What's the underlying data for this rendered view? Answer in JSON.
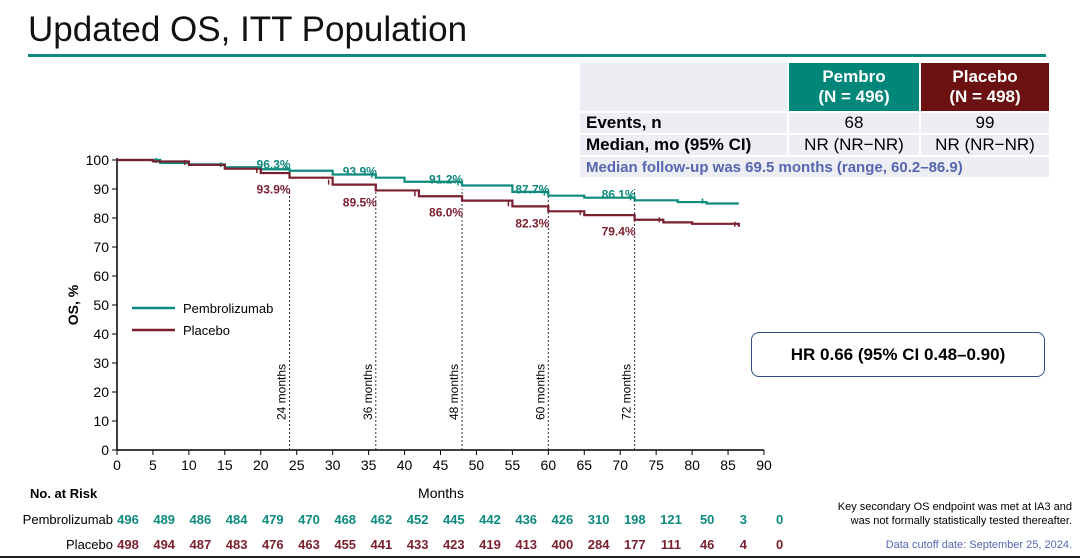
{
  "title": "Updated OS, ITT Population",
  "colors": {
    "pembro": "#0e8a7e",
    "placebo": "#7a1f2e",
    "accent": "#0e8a7e"
  },
  "summary_table": {
    "headers": [
      "",
      "Pembro\n(N = 496)",
      "Placebo\n(N = 498)"
    ],
    "pembro_header": [
      "Pembro",
      "(N = 496)"
    ],
    "placebo_header": [
      "Placebo",
      "(N = 498)"
    ],
    "rows": [
      {
        "label": "Events, n",
        "pembro": "68",
        "placebo": "99"
      },
      {
        "label": "Median, mo (95% CI)",
        "pembro": "NR (NR−NR)",
        "placebo": "NR (NR−NR)"
      }
    ],
    "followup": "Median follow-up was 69.5 months (range, 60.2–86.9)"
  },
  "hr": "HR 0.66 (95% CI 0.48–0.90)",
  "risk_table": {
    "title": "No. at Risk",
    "pembro_label": "Pembrolizumab",
    "placebo_label": "Placebo",
    "pembro": [
      "496",
      "489",
      "486",
      "484",
      "479",
      "470",
      "468",
      "462",
      "452",
      "445",
      "442",
      "436",
      "426",
      "310",
      "198",
      "121",
      "50",
      "3",
      "0"
    ],
    "placebo": [
      "498",
      "494",
      "487",
      "483",
      "476",
      "463",
      "455",
      "441",
      "433",
      "423",
      "419",
      "413",
      "400",
      "284",
      "177",
      "111",
      "46",
      "4",
      "0"
    ]
  },
  "note": [
    "Key secondary OS endpoint was met at IA3 and",
    "was not formally statistically tested thereafter."
  ],
  "cutoff": "Data cutoff date: September 25, 2024.",
  "chart_data": {
    "type": "line",
    "xlabel": "Months",
    "ylabel": "OS, %",
    "xlim": [
      0,
      90
    ],
    "ylim": [
      0,
      100
    ],
    "xticks": [
      0,
      5,
      10,
      15,
      20,
      25,
      30,
      35,
      40,
      45,
      50,
      55,
      60,
      65,
      70,
      75,
      80,
      85,
      90
    ],
    "yticks": [
      0,
      10,
      20,
      30,
      40,
      50,
      60,
      70,
      80,
      90,
      100
    ],
    "legend": "center-left",
    "series": [
      {
        "name": "Pembrolizumab",
        "x": [
          0,
          3,
          6,
          10,
          15,
          20,
          24,
          30,
          36,
          40,
          48,
          55,
          60,
          65,
          72,
          78,
          82,
          86.5
        ],
        "y": [
          100,
          100,
          99,
          98.5,
          97.5,
          96.8,
          96.3,
          95,
          93.9,
          92.5,
          91.2,
          89,
          87.7,
          87,
          86.1,
          85.5,
          85,
          85
        ]
      },
      {
        "name": "Placebo",
        "x": [
          0,
          5,
          10,
          15,
          20,
          24,
          30,
          36,
          42,
          48,
          55,
          60,
          65,
          72,
          76,
          80,
          86.5
        ],
        "y": [
          100,
          99.5,
          98.3,
          97,
          95.5,
          93.9,
          91.5,
          89.5,
          87.5,
          86,
          84,
          82.3,
          81,
          79.4,
          78.5,
          78,
          77
        ]
      }
    ],
    "landmarks": [
      {
        "month": 24,
        "label": "24 months",
        "pembro": "96.3%",
        "placebo": "93.9%"
      },
      {
        "month": 36,
        "label": "36 months",
        "pembro": "93.9%",
        "placebo": "89.5%"
      },
      {
        "month": 48,
        "label": "48 months",
        "pembro": "91.2%",
        "placebo": "86.0%"
      },
      {
        "month": 60,
        "label": "60 months",
        "pembro": "87.7%",
        "placebo": "82.3%"
      },
      {
        "month": 72,
        "label": "72 months",
        "pembro": "86.1%",
        "placebo": "79.4%"
      }
    ]
  }
}
